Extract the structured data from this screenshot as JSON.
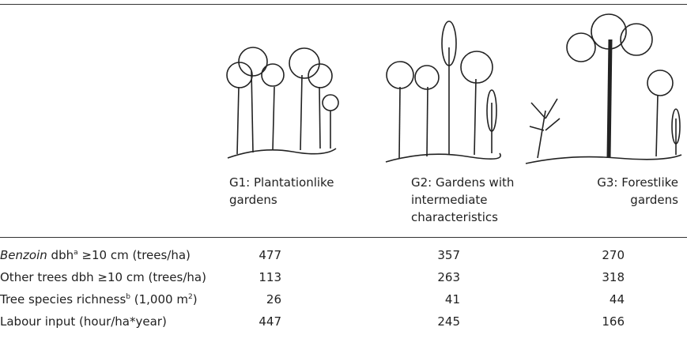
{
  "columns": [
    {
      "title": "G1: Plantationlike gardens"
    },
    {
      "title": "G2: Gardens with intermediate characteristics"
    },
    {
      "title": "G3: Forestlike gardens"
    }
  ],
  "rows": [
    {
      "label": [
        "Benzoin",
        "dbh",
        "a",
        "≥10 cm (trees/ha)"
      ],
      "values": [
        477,
        357,
        270
      ]
    },
    {
      "label": [
        "Other trees dbh ≥10 cm (trees/ha)"
      ],
      "values": [
        113,
        263,
        318
      ]
    },
    {
      "label": [
        "Tree species richness",
        "b",
        "(1,000 m",
        "2",
        ")"
      ],
      "values": [
        26,
        41,
        44
      ]
    },
    {
      "label": [
        "Labour input (hour/ha*year)"
      ],
      "values": [
        447,
        245,
        166
      ]
    }
  ]
}
